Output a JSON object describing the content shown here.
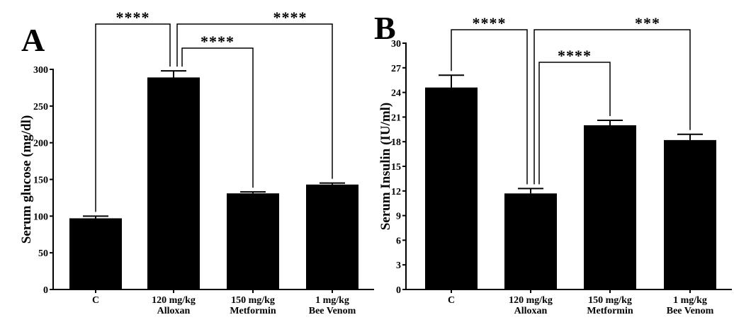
{
  "chart_data": [
    {
      "type": "bar",
      "panel": "A",
      "ylabel": "Serum glucose (mg/dl)",
      "ylim": [
        0,
        300
      ],
      "yticks": [
        0,
        50,
        100,
        150,
        200,
        250,
        300
      ],
      "categories": [
        [
          "C"
        ],
        [
          "120 mg/kg",
          "Alloxan"
        ],
        [
          "150 mg/kg",
          "Metformin"
        ],
        [
          "1 mg/kg",
          "Bee Venom"
        ]
      ],
      "values": [
        97,
        289,
        131,
        143
      ],
      "errors": [
        3,
        9,
        2,
        2
      ],
      "color": "#000000",
      "comparisons": [
        {
          "from": 0,
          "to": 1,
          "label": "****"
        },
        {
          "from": 1,
          "to": 2,
          "label": "****"
        },
        {
          "from": 1,
          "to": 3,
          "label": "****"
        }
      ]
    },
    {
      "type": "bar",
      "panel": "B",
      "ylabel": "Serum Insulin (IU/ml)",
      "ylim": [
        0,
        30
      ],
      "yticks": [
        0,
        3,
        6,
        9,
        12,
        15,
        18,
        21,
        24,
        27,
        30
      ],
      "categories": [
        [
          "C"
        ],
        [
          "120 mg/kg",
          "Alloxan"
        ],
        [
          "150 mg/kg",
          "Metformin"
        ],
        [
          "1 mg/kg",
          "Bee Venom"
        ]
      ],
      "values": [
        24.6,
        11.7,
        20.0,
        18.2
      ],
      "errors": [
        1.5,
        0.6,
        0.6,
        0.7
      ],
      "color": "#000000",
      "comparisons": [
        {
          "from": 0,
          "to": 1,
          "label": "****"
        },
        {
          "from": 1,
          "to": 2,
          "label": "****"
        },
        {
          "from": 1,
          "to": 3,
          "label": "***"
        }
      ]
    }
  ]
}
